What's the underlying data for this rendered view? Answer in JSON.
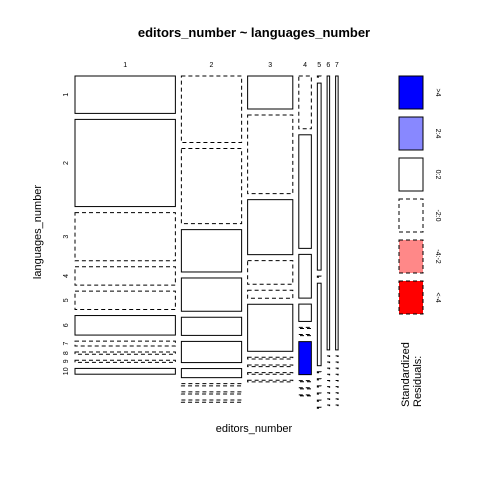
{
  "chart_data": {
    "type": "mosaic",
    "title": "editors_number ~ languages_number",
    "xlabel": "editors_number",
    "ylabel": "languages_number",
    "columns": [
      "1",
      "2",
      "3",
      "4",
      "5",
      "6",
      "7"
    ],
    "rows": [
      "1",
      "2",
      "3",
      "4",
      "5",
      "6",
      "7",
      "8",
      "9",
      "10"
    ],
    "column_proportions": [
      0.3846,
      0.2308,
      0.1731,
      0.0481,
      0.0144,
      0.0096,
      0.0096
    ],
    "cells": {
      "1": [
        0.136,
        0.317,
        0.175,
        0.067,
        0.067,
        0.071,
        0.018,
        0.008,
        0.008,
        0.021
      ],
      "2": [
        0.242,
        0.273,
        0.154,
        0.121,
        0.066,
        0.077,
        0.033,
        0.008,
        0.008,
        0.008
      ],
      "3": [
        0.12,
        0.286,
        0.2,
        0.086,
        0.029,
        0.171,
        0.006,
        0.006,
        0.006,
        0.006
      ],
      "4": [
        0.192,
        0.413,
        0.159,
        0.063,
        0.004,
        0.004,
        0.12,
        0.004,
        0.004,
        0.004
      ],
      "5": [
        0.004,
        0.68,
        0.004,
        0.3,
        0.004,
        0.004,
        0.004,
        0.004,
        0.004,
        0.004
      ],
      "6": [
        0.996,
        0.0005,
        0.0005,
        0.0005,
        0.0005,
        0.0005,
        0.0005,
        0.0005,
        0.0005,
        0.0005
      ],
      "7": [
        0.996,
        0.0005,
        0.0005,
        0.0005,
        0.0005,
        0.0005,
        0.0005,
        0.0005,
        0.0005,
        0.0005
      ]
    },
    "residual_classes": {
      "1": [
        "0:2",
        "0:2",
        "-2:0",
        "-2:0",
        "-2:0",
        "0:2",
        "-2:0",
        "-2:0",
        "-2:0",
        "0:2"
      ],
      "2": [
        "-2:0",
        "-2:0",
        "0:2",
        "0:2",
        "0:2",
        "0:2",
        "0:2",
        "-2:0",
        "-2:0",
        "-2:0"
      ],
      "3": [
        "0:2",
        "-2:0",
        "0:2",
        "-2:0",
        "-2:0",
        "0:2",
        "-2:0",
        "-2:0",
        "-2:0",
        "-2:0"
      ],
      "4": [
        "-2:0",
        "0:2",
        "0:2",
        "0:2",
        "-2:0",
        "-2:0",
        ">4",
        "-2:0",
        "-2:0",
        "-2:0"
      ],
      "5": [
        "-2:0",
        "0:2",
        "-2:0",
        "0:2",
        "-2:0",
        "-2:0",
        "-2:0",
        "-2:0",
        "-2:0",
        "-2:0"
      ],
      "6": [
        "0:2",
        "-2:0",
        "-2:0",
        "-2:0",
        "-2:0",
        "-2:0",
        "-2:0",
        "-2:0",
        "-2:0",
        "-2:0"
      ],
      "7": [
        "0:2",
        "-2:0",
        "-2:0",
        "-2:0",
        "-2:0",
        "-2:0",
        "-2:0",
        "-2:0",
        "-2:0",
        "-2:0"
      ]
    },
    "legend": {
      "title_line1": "Standardized",
      "title_line2": "Residuals:",
      "placement": "right",
      "entries": [
        {
          "label": ">4",
          "fill": "#0000ff",
          "style": "solid"
        },
        {
          "label": "2:4",
          "fill": "#8888ff",
          "style": "solid"
        },
        {
          "label": "0:2",
          "fill": "#ffffff",
          "style": "solid"
        },
        {
          "label": "-2:0",
          "fill": "#ffffff",
          "style": "dashed"
        },
        {
          "label": "-4:-2",
          "fill": "#ff8888",
          "style": "dashed"
        },
        {
          "label": "<-4",
          "fill": "#ff0000",
          "style": "dashed"
        }
      ]
    },
    "colors": {
      ">4": "#0000ff",
      "2:4": "#8888ff",
      "0:2": "#ffffff",
      "-2:0": "#ffffff",
      "-4:-2": "#ff8888",
      "<-4": "#ff0000"
    }
  }
}
